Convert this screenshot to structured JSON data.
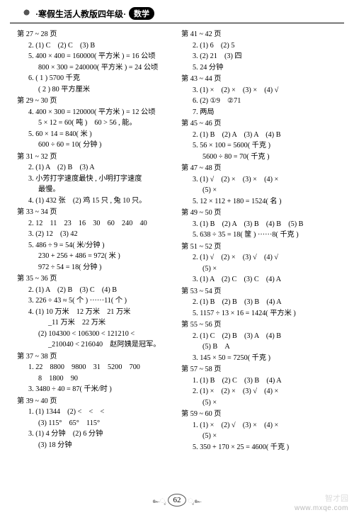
{
  "header": {
    "title_prefix": "·寒假生活人教版四年级·",
    "badge": "数学"
  },
  "left": [
    {
      "title": "第 27 ~ 28 页",
      "lines": [
        "2. (1) C　(2) C　(3) B",
        "5. 400 × 400 = 160000( 平方米 ) = 16 公顷",
        "__800 × 300 = 240000( 平方米 ) = 24 公顷",
        "6. ( 1 ) 5700 千克",
        "__( 2 ) 80 平方厘米"
      ]
    },
    {
      "title": "第 29 ~ 30 页",
      "lines": [
        "4. 400 × 300 = 120000( 平方米 ) = 12 公顷",
        "__5 × 12 = 60( 吨 )　60 > 56 , 能。",
        "5. 60 × 14 = 840( 米 )",
        "__600 ÷ 60 = 10( 分钟 )"
      ]
    },
    {
      "title": "第 31 ~ 32 页",
      "lines": [
        "2. (1) A　(2) B　(3) A",
        "3. 小芳打字速度最快 , 小明打字速度",
        "__最慢。",
        "4. (1) 432 张　(2) 鸡 15 只 , 兔 10 只。"
      ]
    },
    {
      "title": "第 33 ~ 34 页",
      "lines": [
        "2. 12　11　23　16　30　60　240　40",
        "3. (2) 12　(3) 42",
        "5. 486 ÷ 9 = 54( 米/分钟 )",
        "__230 + 256 + 486 = 972( 米 )",
        "__972 ÷ 54 = 18( 分钟 )"
      ]
    },
    {
      "title": "第 35 ~ 36 页",
      "lines": [
        "2. (1) A　(2) B　(3) C　(4) B",
        "3. 226 ÷ 43 ≈ 5( 个 ) ······11( 个 )",
        "4. (1) 10 万米　12 万米　21 万米",
        "_____11 万米　22 万米",
        "__(2) 104300 < 106300 < 121210 <",
        "_____210040 < 216040　赵阿姨是冠军。"
      ]
    },
    {
      "title": "第 37 ~ 38 页",
      "lines": [
        "1. 22　8800　9800　31　5200　700",
        "__8　1800　90",
        "3. 3480 ÷ 40 = 87( 千米/时 )"
      ]
    },
    {
      "title": "第 39 ~ 40 页",
      "lines": [
        "1. (1) 1344　(2) <　<　<",
        "__(3) 115°　65°　115°",
        "3. (1) 4 分钟　(2) 6 分钟",
        "__(3) 18 分钟"
      ]
    }
  ],
  "right": [
    {
      "title": "第 41 ~ 42 页",
      "lines": [
        "2. (1) 6　(2) 5",
        "3. (2) 21　(3) 四",
        "5. 24 分钟"
      ]
    },
    {
      "title": "第 43 ~ 44 页",
      "lines": [
        "3. (1) ×　(2) ×　(3) ×　(4) √",
        "6. (2) ①9　②71",
        "7. 两局"
      ]
    },
    {
      "title": "第 45 ~ 46 页",
      "lines": [
        "2. (1) B　(2) A　(3) A　(4) B",
        "5. 56 × 100 = 5600( 千克 )",
        "__5600 ÷ 80 = 70( 千克 )"
      ]
    },
    {
      "title": "第 47 ~ 48 页",
      "lines": [
        "3. (1) √　(2) ×　(3) ×　(4) ×",
        "__(5) ×",
        "5. 12 × 112 + 180 = 1524( 名 )"
      ]
    },
    {
      "title": "第 49 ~ 50 页",
      "lines": [
        "3. (1) B　(2) A　(3) B　(4) B　(5) B",
        "5. 638 ÷ 35 = 18( 筐 ) ······8( 千克 )"
      ]
    },
    {
      "title": "第 51 ~ 52 页",
      "lines": [
        "2. (1) √　(2) ×　(3) √　(4) √",
        "__(5) ×",
        "3. (1) A　(2) C　(3) C　(4) A"
      ]
    },
    {
      "title": "第 53 ~ 54 页",
      "lines": [
        "2. (1) B　(2) B　(3) B　(4) A",
        "5. 1157 ÷ 13 × 16 = 1424( 平方米 )"
      ]
    },
    {
      "title": "第 55 ~ 56 页",
      "lines": [
        "2. (1) C　(2) B　(3) A　(4) B",
        "__(5) B　A",
        "3. 145 × 50 = 7250( 千克 )"
      ]
    },
    {
      "title": "第 57 ~ 58 页",
      "lines": [
        "1. (1) B　(2) C　(3) B　(4) A",
        "2. (1) ×　(2) ×　(3) √　(4) ×",
        "__(5) ×"
      ]
    },
    {
      "title": "第 59 ~ 60 页",
      "lines": [
        "1. (1) ×　(2) √　(3) ×　(4) ×",
        "__(5) ×",
        "5. 350 + 170 × 25 = 4600( 千克 )"
      ]
    }
  ],
  "page_number": "62",
  "watermark_top": "智才园",
  "watermark_bottom": "www.mxqe.com"
}
